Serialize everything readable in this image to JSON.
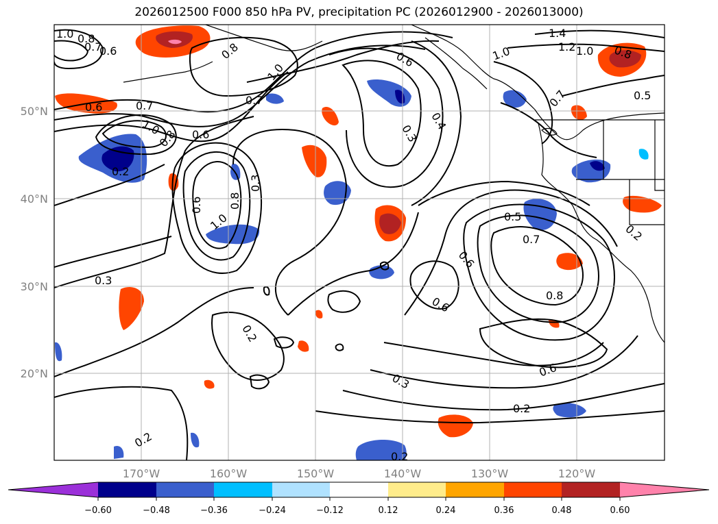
{
  "title": "2026012500 F000 850 hPa PV, precipitation PC (2026012900 - 2026013000)",
  "colors": {
    "land_line": "#000000",
    "grid": "#b0b0b0",
    "contour": "#000000"
  },
  "axes": {
    "lon_labels": [
      "170°W",
      "160°W",
      "150°W",
      "140°W",
      "130°W",
      "120°W"
    ],
    "lat_labels": [
      "50°N",
      "40°N",
      "30°N",
      "20°N"
    ]
  },
  "contour_labels": [
    "1.0",
    "0.8",
    "0.7",
    "0.6",
    "0.8",
    "1.0",
    "0.7",
    "0.6",
    "0.7",
    "1.0",
    "0.8",
    "0.6",
    "0.2",
    "0.6",
    "1.4",
    "1.2",
    "1.0",
    "1.0",
    "0.8",
    "0.5",
    "0.7",
    "0.4",
    "0.3",
    "0.3",
    "0.8",
    "1.0",
    "0.6",
    "0.3",
    "0.5",
    "0.7",
    "0.6",
    "0.8",
    "0.6",
    "0.2",
    "0.6",
    "0.3",
    "0.2",
    "0.2",
    "0.2",
    "0.2"
  ],
  "colorbar": {
    "ticks": [
      "−0.60",
      "−0.48",
      "−0.36",
      "−0.24",
      "−0.12",
      "0.12",
      "0.24",
      "0.36",
      "0.48",
      "0.60"
    ],
    "colors": [
      "#9b30d9",
      "#00008b",
      "#3a5fcd",
      "#00bfff",
      "#b0e2ff",
      "#ffffff",
      "#ffec8b",
      "#ffa500",
      "#ff4500",
      "#b22222",
      "#ff82ab",
      "#ff82ab"
    ]
  }
}
